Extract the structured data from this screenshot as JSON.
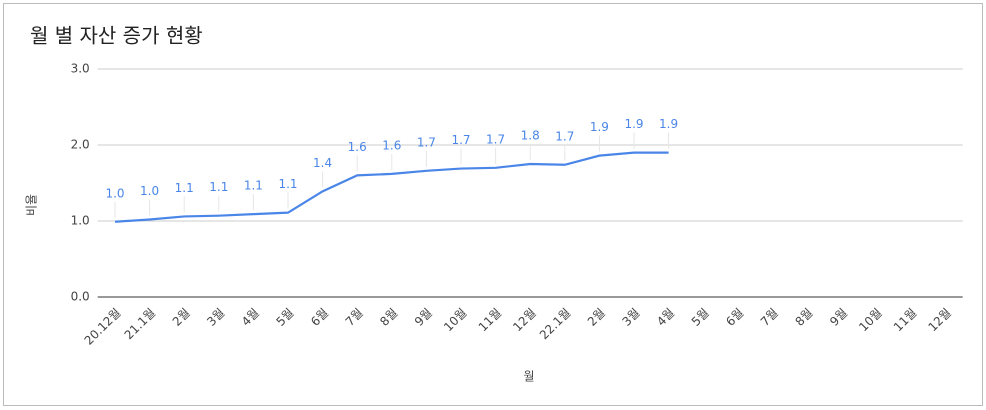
{
  "chart_data": {
    "type": "line",
    "title": "월 별 자산 증가 현황",
    "x_label": "월",
    "y_label": "비율",
    "categories": [
      "20.12월",
      "21.1월",
      "2월",
      "3월",
      "4월",
      "5월",
      "6월",
      "7월",
      "8월",
      "9월",
      "10월",
      "11월",
      "12월",
      "22.1월",
      "2월",
      "3월",
      "4월",
      "5월",
      "6월",
      "7월",
      "8월",
      "9월",
      "10월",
      "11월",
      "12월"
    ],
    "values": [
      0.99,
      1.02,
      1.06,
      1.07,
      1.09,
      1.11,
      1.39,
      1.6,
      1.62,
      1.66,
      1.69,
      1.7,
      1.75,
      1.74,
      1.86,
      1.9,
      1.9,
      null,
      null,
      null,
      null,
      null,
      null,
      null,
      null
    ],
    "value_labels": [
      "1.0",
      "1.0",
      "1.1",
      "1.1",
      "1.1",
      "1.1",
      "1.4",
      "1.6",
      "1.6",
      "1.7",
      "1.7",
      "1.7",
      "1.8",
      "1.7",
      "1.9",
      "1.9",
      "1.9",
      null,
      null,
      null,
      null,
      null,
      null,
      null,
      null
    ],
    "color": "#4a86e8",
    "ylim": [
      0,
      3
    ],
    "yticks": [
      {
        "value": 0,
        "label": "0.0"
      },
      {
        "value": 1,
        "label": "1.0"
      },
      {
        "value": 2,
        "label": "2.0"
      },
      {
        "value": 3,
        "label": "3.0"
      }
    ],
    "grid": true
  }
}
